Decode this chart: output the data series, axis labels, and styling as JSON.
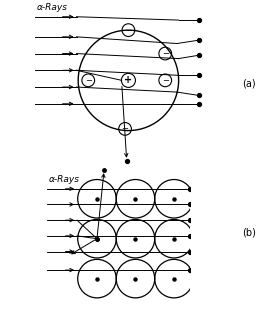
{
  "bg_color": "#ffffff",
  "line_color": "#000000",
  "title_a": "α-Rays",
  "title_b": "α-Rays",
  "label_a": "(a)",
  "label_b": "(b)",
  "fig_width": 2.69,
  "fig_height": 3.1,
  "dpi": 100
}
